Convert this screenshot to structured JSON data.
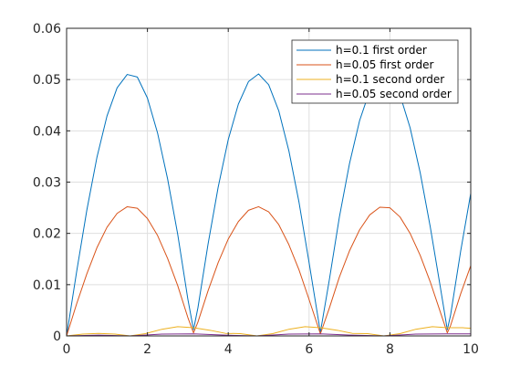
{
  "chart_data": {
    "type": "line",
    "title": "",
    "xlabel": "",
    "ylabel": "",
    "xlim": [
      0,
      10
    ],
    "ylim": [
      0,
      0.06
    ],
    "xticks": [
      0,
      2,
      4,
      6,
      8,
      10
    ],
    "yticks": [
      0,
      0.01,
      0.02,
      0.03,
      0.04,
      0.05,
      0.06
    ],
    "xtick_labels": [
      "0",
      "2",
      "4",
      "6",
      "8",
      "10"
    ],
    "ytick_labels": [
      "0",
      "0.01",
      "0.02",
      "0.03",
      "0.04",
      "0.05",
      "0.06"
    ],
    "grid": true,
    "legend_position": "top-right",
    "series": [
      {
        "name": "h=0.1 first order",
        "color": "#0072bd",
        "x": [
          0,
          0.25,
          0.5,
          0.75,
          1.0,
          1.25,
          1.5,
          1.75,
          2.0,
          2.25,
          2.5,
          2.75,
          3.0,
          3.14,
          3.25,
          3.5,
          3.75,
          4.0,
          4.25,
          4.5,
          4.75,
          5.0,
          5.25,
          5.5,
          5.75,
          6.0,
          6.28,
          6.5,
          6.75,
          7.0,
          7.25,
          7.5,
          7.75,
          8.0,
          8.25,
          8.5,
          8.75,
          9.0,
          9.25,
          9.42,
          9.5,
          9.75,
          10.0
        ],
        "y": [
          0.0,
          0.0126,
          0.0245,
          0.0348,
          0.0429,
          0.0484,
          0.051,
          0.0505,
          0.0464,
          0.0396,
          0.0306,
          0.0198,
          0.0072,
          0.0012,
          0.0055,
          0.0179,
          0.029,
          0.0383,
          0.0452,
          0.0496,
          0.0511,
          0.049,
          0.0439,
          0.0361,
          0.0261,
          0.0143,
          0.0007,
          0.0109,
          0.0232,
          0.0336,
          0.042,
          0.0478,
          0.0508,
          0.0507,
          0.047,
          0.0406,
          0.0318,
          0.0212,
          0.0094,
          0.0012,
          0.004,
          0.0165,
          0.0278
        ]
      },
      {
        "name": "h=0.05 first order",
        "color": "#d95319",
        "x": [
          0,
          0.25,
          0.5,
          0.75,
          1.0,
          1.25,
          1.5,
          1.75,
          2.0,
          2.25,
          2.5,
          2.75,
          3.0,
          3.14,
          3.25,
          3.5,
          3.75,
          4.0,
          4.25,
          4.5,
          4.75,
          5.0,
          5.25,
          5.5,
          5.75,
          6.0,
          6.28,
          6.5,
          6.75,
          7.0,
          7.25,
          7.5,
          7.75,
          8.0,
          8.25,
          8.5,
          8.75,
          9.0,
          9.25,
          9.42,
          9.5,
          9.75,
          10.0
        ],
        "y": [
          0.0,
          0.0063,
          0.0121,
          0.0172,
          0.0212,
          0.0239,
          0.0252,
          0.0249,
          0.0229,
          0.0196,
          0.0151,
          0.0098,
          0.0036,
          0.0006,
          0.0027,
          0.0088,
          0.0143,
          0.0189,
          0.0223,
          0.0245,
          0.0252,
          0.0242,
          0.0217,
          0.0178,
          0.0129,
          0.0071,
          0.0004,
          0.0054,
          0.0115,
          0.0166,
          0.0207,
          0.0236,
          0.0251,
          0.025,
          0.0232,
          0.02,
          0.0157,
          0.0105,
          0.0046,
          0.0006,
          0.002,
          0.0082,
          0.0137
        ]
      },
      {
        "name": "h=0.1 second order",
        "color": "#edb120",
        "x": [
          0,
          0.4,
          0.79,
          1.2,
          1.57,
          1.95,
          2.36,
          2.75,
          3.14,
          3.55,
          3.93,
          4.3,
          4.71,
          5.1,
          5.5,
          5.9,
          6.28,
          6.7,
          7.07,
          7.45,
          7.85,
          8.25,
          8.64,
          9.05,
          9.42,
          9.8,
          10.0
        ],
        "y": [
          0.0,
          0.00035,
          0.0005,
          0.00035,
          0.0,
          0.00045,
          0.0013,
          0.0018,
          0.0016,
          0.0011,
          0.0005,
          0.00045,
          0.0,
          0.00045,
          0.0013,
          0.0018,
          0.0016,
          0.0011,
          0.0005,
          0.00045,
          0.0,
          0.00045,
          0.0013,
          0.0018,
          0.0016,
          0.0016,
          0.0015
        ]
      },
      {
        "name": "h=0.05 second order",
        "color": "#7e2f8e",
        "x": [
          0,
          0.79,
          1.57,
          2.36,
          3.14,
          3.93,
          4.71,
          5.5,
          6.28,
          7.07,
          7.85,
          8.64,
          9.42,
          10.0
        ],
        "y": [
          0.0,
          0.00015,
          0.0,
          0.00035,
          0.0004,
          0.00015,
          0.0,
          0.00035,
          0.0004,
          0.00015,
          0.0,
          0.00035,
          0.0004,
          0.0004
        ]
      }
    ]
  }
}
